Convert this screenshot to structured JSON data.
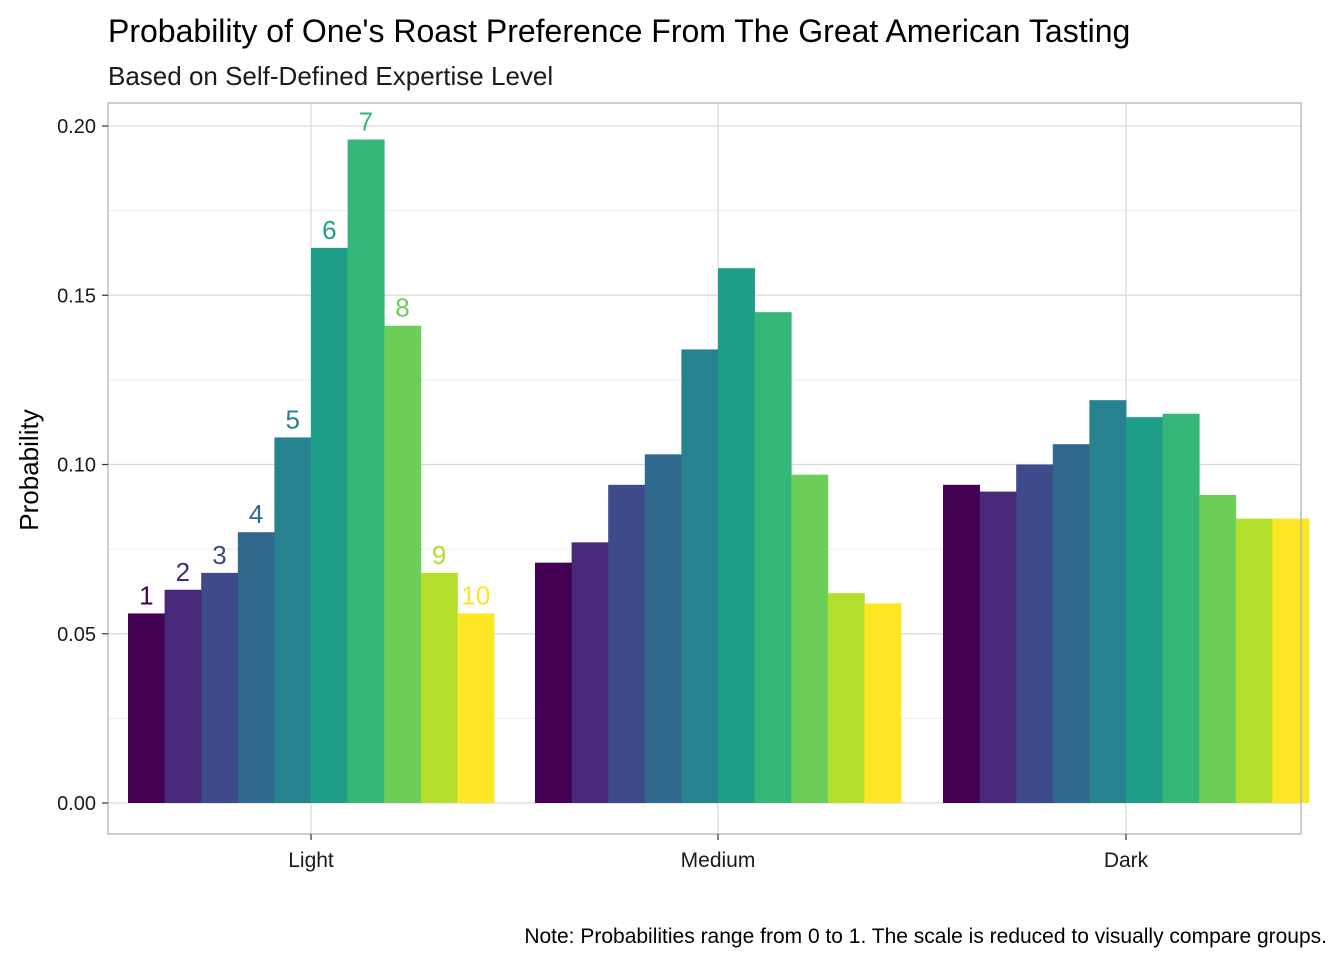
{
  "chart_data": {
    "type": "bar",
    "title": "Probability of One's Roast Preference From The Great American Tasting",
    "subtitle": "Based on Self-Defined Expertise Level",
    "xlabel": "",
    "ylabel": "Probability",
    "caption": "Note: Probabilities range from 0 to 1. The scale is reduced to visually compare groups.",
    "ylim": [
      -0.01,
      0.205
    ],
    "y_ticks": [
      "0.00",
      "0.05",
      "0.10",
      "0.15",
      "0.20"
    ],
    "y_tick_values": [
      0.0,
      0.05,
      0.1,
      0.15,
      0.2
    ],
    "categories": [
      "Light",
      "Medium",
      "Dark"
    ],
    "grid": true,
    "legend": "none",
    "series": [
      {
        "label": "1",
        "color": "#440154",
        "values": [
          0.056,
          0.071,
          0.094
        ]
      },
      {
        "label": "2",
        "color": "#482878",
        "values": [
          0.063,
          0.077,
          0.092
        ]
      },
      {
        "label": "3",
        "color": "#3E4A89",
        "values": [
          0.068,
          0.094,
          0.1
        ]
      },
      {
        "label": "4",
        "color": "#31688E",
        "values": [
          0.08,
          0.103,
          0.106
        ]
      },
      {
        "label": "5",
        "color": "#26828E",
        "values": [
          0.108,
          0.134,
          0.119
        ]
      },
      {
        "label": "6",
        "color": "#1F9E89",
        "values": [
          0.164,
          0.158,
          0.114
        ]
      },
      {
        "label": "7",
        "color": "#35B779",
        "values": [
          0.196,
          0.145,
          0.115
        ]
      },
      {
        "label": "8",
        "color": "#6DCD59",
        "values": [
          0.141,
          0.097,
          0.091
        ]
      },
      {
        "label": "9",
        "color": "#B4DE2C",
        "values": [
          0.068,
          0.062,
          0.084
        ]
      },
      {
        "label": "10",
        "color": "#FDE725",
        "values": [
          0.056,
          0.059,
          0.084
        ]
      }
    ],
    "bar_labels_on_category": "Light"
  },
  "colors": {
    "panel_border": "#b3b3b3",
    "grid_major": "#d9d9d9",
    "grid_minor": "#ececec",
    "text": "#000000",
    "axis_text": "#1a1a1a"
  }
}
